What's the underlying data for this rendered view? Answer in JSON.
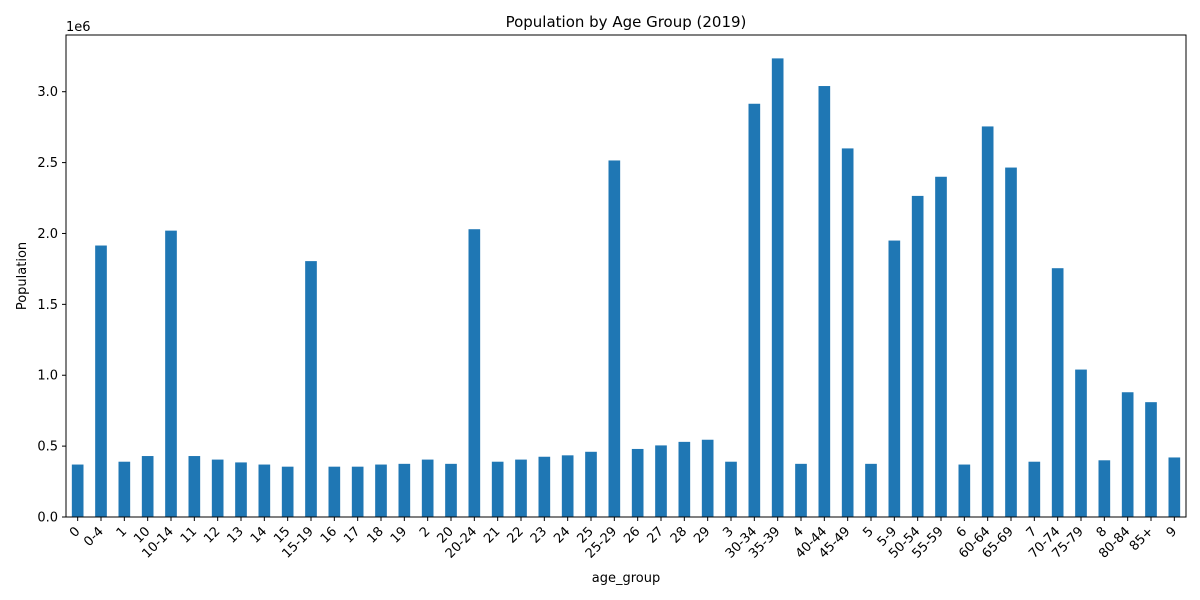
{
  "chart_data": {
    "type": "bar",
    "title": "Population by Age Group (2019)",
    "xlabel": "age_group",
    "ylabel": "Population",
    "y_offset_label": "1e6",
    "ylim": [
      0,
      3400000
    ],
    "yticks": [
      0,
      500000,
      1000000,
      1500000,
      2000000,
      2500000,
      3000000
    ],
    "ytick_labels": [
      "0.0",
      "0.5",
      "1.0",
      "1.5",
      "2.0",
      "2.5",
      "3.0"
    ],
    "bar_color": "#1f77b4",
    "grid": false,
    "legend": false,
    "categories": [
      "0",
      "0-4",
      "1",
      "10",
      "10-14",
      "11",
      "12",
      "13",
      "14",
      "15",
      "15-19",
      "16",
      "17",
      "18",
      "19",
      "2",
      "20",
      "20-24",
      "21",
      "22",
      "23",
      "24",
      "25",
      "25-29",
      "26",
      "27",
      "28",
      "29",
      "3",
      "30-34",
      "35-39",
      "4",
      "40-44",
      "45-49",
      "5",
      "5-9",
      "50-54",
      "55-59",
      "6",
      "60-64",
      "65-69",
      "7",
      "70-74",
      "75-79",
      "8",
      "80-84",
      "85+",
      "9"
    ],
    "values": [
      370000,
      1915000,
      390000,
      430000,
      2020000,
      430000,
      405000,
      385000,
      370000,
      355000,
      1805000,
      355000,
      355000,
      370000,
      375000,
      405000,
      375000,
      2030000,
      390000,
      405000,
      425000,
      435000,
      460000,
      2515000,
      480000,
      505000,
      530000,
      545000,
      390000,
      2915000,
      3235000,
      375000,
      3040000,
      2600000,
      375000,
      1950000,
      2265000,
      2400000,
      370000,
      2755000,
      2465000,
      390000,
      1755000,
      1040000,
      400000,
      880000,
      810000,
      420000
    ]
  }
}
